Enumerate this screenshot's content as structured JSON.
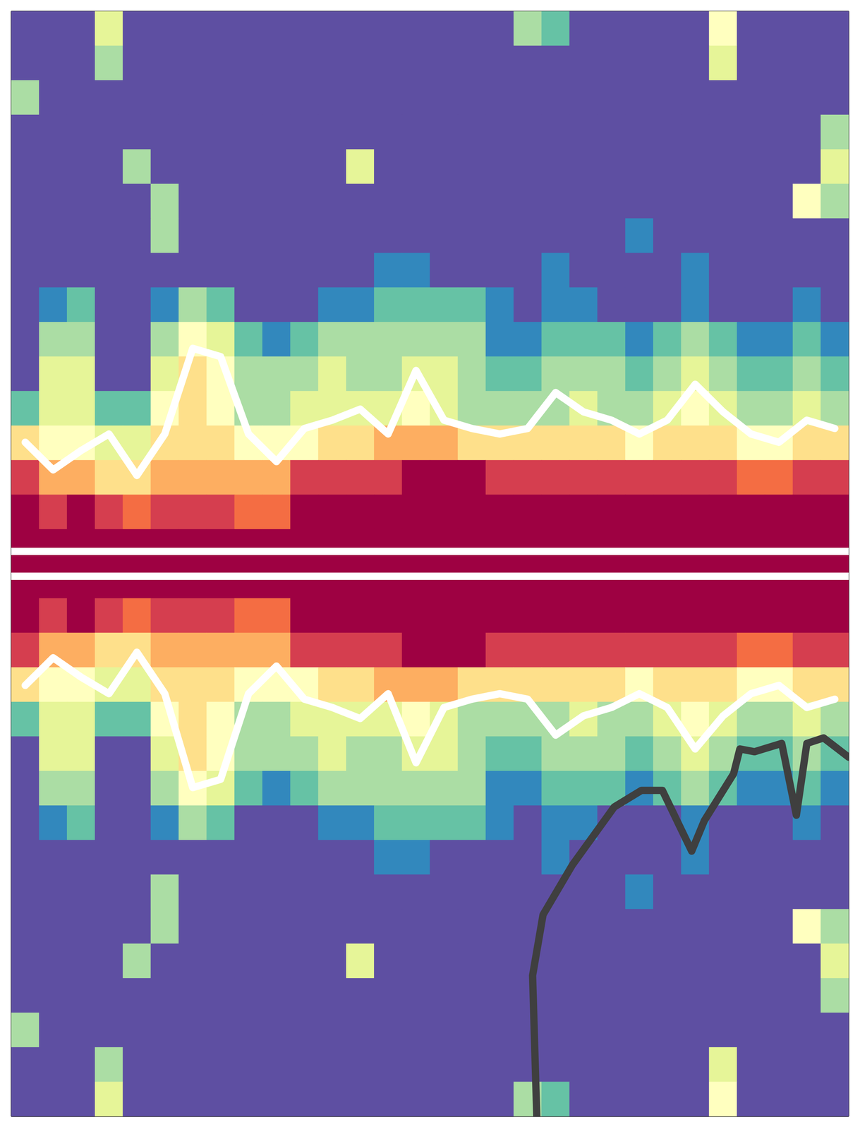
{
  "chart_data": {
    "type": "heatmap",
    "tick_labels": false,
    "xlim": [
      0,
      4
    ],
    "xticks": [
      1,
      2,
      3
    ],
    "ylim": [
      -2,
      2
    ],
    "yticks": [
      -1,
      1
    ],
    "zlim": [
      0,
      10
    ],
    "x": [
      0.0667,
      0.2,
      0.3333,
      0.4667,
      0.6,
      0.7333,
      0.8667,
      1,
      1.1333,
      1.2667,
      1.4,
      1.5333,
      1.6667,
      1.8,
      1.9333,
      2.0667,
      2.2,
      2.3333,
      2.4667,
      2.6,
      2.7333,
      2.8667,
      3,
      3.1333,
      3.2667,
      3.4,
      3.5333,
      3.6667,
      3.8,
      3.9333
    ],
    "y": [
      1.9375,
      1.8125,
      1.6875,
      1.5625,
      1.4375,
      1.3125,
      1.1875,
      1.0625,
      0.9375,
      0.8125,
      0.6875,
      0.5625,
      0.4375,
      0.3125,
      0.1875,
      0.0625,
      -0.0625,
      -0.1875,
      -0.3125,
      -0.4375,
      -0.5625,
      -0.6875,
      -0.8125,
      -0.9375,
      -1.0625,
      -1.1875,
      -1.3125,
      -1.4375,
      -1.5625,
      -1.6875,
      -1.8125,
      -1.9375
    ],
    "z": [
      [
        0,
        0,
        0,
        4,
        0,
        0,
        0,
        0,
        0,
        0,
        0,
        0,
        0,
        0,
        0,
        0,
        0,
        0,
        3,
        2,
        0,
        0,
        0,
        0,
        0,
        5,
        0,
        0,
        0,
        0
      ],
      [
        0,
        0,
        0,
        3,
        0,
        0,
        0,
        0,
        0,
        0,
        0,
        0,
        0,
        0,
        0,
        0,
        0,
        0,
        0,
        0,
        0,
        0,
        0,
        0,
        0,
        4,
        0,
        0,
        0,
        0
      ],
      [
        3,
        0,
        0,
        0,
        0,
        0,
        0,
        0,
        0,
        0,
        0,
        0,
        0,
        0,
        0,
        0,
        0,
        0,
        0,
        0,
        0,
        0,
        0,
        0,
        0,
        0,
        0,
        0,
        0,
        0
      ],
      [
        0,
        0,
        0,
        0,
        0,
        0,
        0,
        0,
        0,
        0,
        0,
        0,
        0,
        0,
        0,
        0,
        0,
        0,
        0,
        0,
        0,
        0,
        0,
        0,
        0,
        0,
        0,
        0,
        0,
        3
      ],
      [
        0,
        0,
        0,
        0,
        3,
        0,
        0,
        0,
        0,
        0,
        0,
        0,
        4,
        0,
        0,
        0,
        0,
        0,
        0,
        0,
        0,
        0,
        0,
        0,
        0,
        0,
        0,
        0,
        0,
        4
      ],
      [
        0,
        0,
        0,
        0,
        0,
        3,
        0,
        0,
        0,
        0,
        0,
        0,
        0,
        0,
        0,
        0,
        0,
        0,
        0,
        0,
        0,
        0,
        0,
        0,
        0,
        0,
        0,
        0,
        5,
        3
      ],
      [
        0,
        0,
        0,
        0,
        0,
        3,
        0,
        0,
        0,
        0,
        0,
        0,
        0,
        0,
        0,
        0,
        0,
        0,
        0,
        0,
        0,
        0,
        1,
        0,
        0,
        0,
        0,
        0,
        0,
        0
      ],
      [
        0,
        0,
        0,
        0,
        0,
        0,
        0,
        0,
        0,
        0,
        0,
        0,
        0,
        1,
        1,
        0,
        0,
        0,
        0,
        1,
        0,
        0,
        0,
        0,
        1,
        0,
        0,
        0,
        0,
        0
      ],
      [
        0,
        1,
        2,
        0,
        0,
        1,
        3,
        2,
        0,
        0,
        0,
        1,
        1,
        2,
        2,
        2,
        2,
        1,
        0,
        1,
        1,
        0,
        0,
        0,
        1,
        0,
        0,
        0,
        1,
        0
      ],
      [
        0,
        3,
        3,
        0,
        0,
        3,
        5,
        4,
        2,
        1,
        2,
        3,
        3,
        3,
        3,
        3,
        3,
        1,
        1,
        2,
        2,
        2,
        1,
        2,
        3,
        2,
        1,
        1,
        2,
        1
      ],
      [
        0,
        4,
        4,
        0,
        0,
        4,
        6,
        5,
        3,
        3,
        3,
        4,
        3,
        3,
        4,
        4,
        3,
        2,
        2,
        3,
        3,
        3,
        2,
        3,
        4,
        3,
        2,
        2,
        3,
        2
      ],
      [
        2,
        4,
        4,
        2,
        2,
        5,
        6,
        5,
        3,
        3,
        4,
        4,
        4,
        4,
        5,
        4,
        3,
        3,
        3,
        3,
        4,
        3,
        3,
        4,
        5,
        4,
        3,
        3,
        4,
        3
      ],
      [
        6,
        5,
        5,
        4,
        4,
        6,
        6,
        6,
        5,
        5,
        5,
        6,
        6,
        7,
        7,
        7,
        6,
        6,
        6,
        6,
        6,
        6,
        5,
        6,
        6,
        6,
        5,
        5,
        6,
        6
      ],
      [
        9,
        7,
        7,
        6,
        6,
        7,
        7,
        7,
        7,
        7,
        9,
        9,
        9,
        9,
        10,
        10,
        10,
        9,
        9,
        9,
        9,
        9,
        9,
        9,
        9,
        9,
        8,
        8,
        9,
        9
      ],
      [
        10,
        9,
        10,
        9,
        8,
        9,
        9,
        9,
        8,
        8,
        10,
        10,
        10,
        10,
        10,
        10,
        10,
        10,
        10,
        10,
        10,
        10,
        10,
        10,
        10,
        10,
        10,
        10,
        10,
        10
      ],
      [
        10,
        10,
        10,
        10,
        10,
        10,
        10,
        10,
        10,
        10,
        10,
        10,
        10,
        10,
        10,
        10,
        10,
        10,
        10,
        10,
        10,
        10,
        10,
        10,
        10,
        10,
        10,
        10,
        10,
        10
      ],
      [
        10,
        10,
        10,
        10,
        10,
        10,
        10,
        10,
        10,
        10,
        10,
        10,
        10,
        10,
        10,
        10,
        10,
        10,
        10,
        10,
        10,
        10,
        10,
        10,
        10,
        10,
        10,
        10,
        10,
        10
      ],
      [
        10,
        9,
        10,
        9,
        8,
        9,
        9,
        9,
        8,
        8,
        10,
        10,
        10,
        10,
        10,
        10,
        10,
        10,
        10,
        10,
        10,
        10,
        10,
        10,
        10,
        10,
        10,
        10,
        10,
        10
      ],
      [
        9,
        7,
        7,
        6,
        6,
        7,
        7,
        7,
        7,
        7,
        9,
        9,
        9,
        9,
        10,
        10,
        10,
        9,
        9,
        9,
        9,
        9,
        9,
        9,
        9,
        9,
        8,
        8,
        9,
        9
      ],
      [
        6,
        5,
        5,
        4,
        4,
        6,
        6,
        6,
        5,
        5,
        5,
        6,
        6,
        7,
        7,
        7,
        6,
        6,
        6,
        6,
        6,
        6,
        5,
        6,
        6,
        6,
        5,
        5,
        6,
        6
      ],
      [
        2,
        4,
        4,
        2,
        2,
        5,
        6,
        5,
        3,
        3,
        4,
        4,
        4,
        4,
        5,
        4,
        3,
        3,
        3,
        3,
        4,
        3,
        3,
        4,
        5,
        4,
        3,
        3,
        4,
        3
      ],
      [
        0,
        4,
        4,
        0,
        0,
        4,
        6,
        5,
        3,
        3,
        3,
        4,
        3,
        3,
        4,
        4,
        3,
        2,
        2,
        3,
        3,
        3,
        2,
        3,
        4,
        3,
        2,
        2,
        3,
        2
      ],
      [
        0,
        3,
        3,
        0,
        0,
        3,
        5,
        4,
        2,
        1,
        2,
        3,
        3,
        3,
        3,
        3,
        3,
        1,
        1,
        2,
        2,
        2,
        1,
        2,
        3,
        2,
        1,
        1,
        2,
        1
      ],
      [
        0,
        1,
        2,
        0,
        0,
        1,
        3,
        2,
        0,
        0,
        0,
        1,
        1,
        2,
        2,
        2,
        2,
        1,
        0,
        1,
        1,
        0,
        0,
        0,
        1,
        0,
        0,
        0,
        1,
        0
      ],
      [
        0,
        0,
        0,
        0,
        0,
        0,
        0,
        0,
        0,
        0,
        0,
        0,
        0,
        1,
        1,
        0,
        0,
        0,
        0,
        1,
        0,
        0,
        0,
        0,
        1,
        0,
        0,
        0,
        0,
        0
      ],
      [
        0,
        0,
        0,
        0,
        0,
        3,
        0,
        0,
        0,
        0,
        0,
        0,
        0,
        0,
        0,
        0,
        0,
        0,
        0,
        0,
        0,
        0,
        1,
        0,
        0,
        0,
        0,
        0,
        0,
        0
      ],
      [
        0,
        0,
        0,
        0,
        0,
        3,
        0,
        0,
        0,
        0,
        0,
        0,
        0,
        0,
        0,
        0,
        0,
        0,
        0,
        0,
        0,
        0,
        0,
        0,
        0,
        0,
        0,
        0,
        5,
        3
      ],
      [
        0,
        0,
        0,
        0,
        3,
        0,
        0,
        0,
        0,
        0,
        0,
        0,
        4,
        0,
        0,
        0,
        0,
        0,
        0,
        0,
        0,
        0,
        0,
        0,
        0,
        0,
        0,
        0,
        0,
        4
      ],
      [
        0,
        0,
        0,
        0,
        0,
        0,
        0,
        0,
        0,
        0,
        0,
        0,
        0,
        0,
        0,
        0,
        0,
        0,
        0,
        0,
        0,
        0,
        0,
        0,
        0,
        0,
        0,
        0,
        0,
        3
      ],
      [
        3,
        0,
        0,
        0,
        0,
        0,
        0,
        0,
        0,
        0,
        0,
        0,
        0,
        0,
        0,
        0,
        0,
        0,
        0,
        0,
        0,
        0,
        0,
        0,
        0,
        0,
        0,
        0,
        0,
        0
      ],
      [
        0,
        0,
        0,
        3,
        0,
        0,
        0,
        0,
        0,
        0,
        0,
        0,
        0,
        0,
        0,
        0,
        0,
        0,
        0,
        0,
        0,
        0,
        0,
        0,
        0,
        4,
        0,
        0,
        0,
        0
      ],
      [
        0,
        0,
        0,
        4,
        0,
        0,
        0,
        0,
        0,
        0,
        0,
        0,
        0,
        0,
        0,
        0,
        0,
        0,
        3,
        2,
        0,
        0,
        0,
        0,
        0,
        5,
        0,
        0,
        0,
        0
      ]
    ],
    "series": [
      {
        "color": "#ffffff",
        "x": [
          0.0667,
          0.2,
          0.3333,
          0.4667,
          0.6,
          0.7333,
          0.8667,
          1,
          1.1333,
          1.2667,
          1.4,
          1.5333,
          1.6667,
          1.8,
          1.9333,
          2.0667,
          2.2,
          2.3333,
          2.4667,
          2.6,
          2.7333,
          2.8667,
          3,
          3.1333,
          3.2667,
          3.4,
          3.5333,
          3.6667,
          3.8,
          3.9333
        ],
        "values": [
          0.44,
          0.34,
          0.41,
          0.47,
          0.32,
          0.47,
          0.78,
          0.75,
          0.47,
          0.37,
          0.49,
          0.52,
          0.56,
          0.47,
          0.7,
          0.52,
          0.49,
          0.47,
          0.49,
          0.62,
          0.55,
          0.52,
          0.47,
          0.52,
          0.65,
          0.55,
          0.47,
          0.44,
          0.52,
          0.49
        ]
      },
      {
        "color": "#ffffff",
        "x": [
          0.0667,
          0.2,
          0.3333,
          0.4667,
          0.6,
          0.7333,
          0.8667,
          1,
          1.1333,
          1.2667,
          1.4,
          1.5333,
          1.6667,
          1.8,
          1.9333,
          2.0667,
          2.2,
          2.3333,
          2.4667,
          2.6,
          2.7333,
          2.8667,
          3,
          3.1333,
          3.2667,
          3.4,
          3.5333,
          3.6667,
          3.8,
          3.9333
        ],
        "values": [
          -0.44,
          -0.34,
          -0.41,
          -0.47,
          -0.32,
          -0.47,
          -0.81,
          -0.78,
          -0.47,
          -0.37,
          -0.49,
          -0.52,
          -0.56,
          -0.47,
          -0.72,
          -0.52,
          -0.49,
          -0.47,
          -0.49,
          -0.62,
          -0.55,
          -0.52,
          -0.47,
          -0.52,
          -0.67,
          -0.55,
          -0.47,
          -0.44,
          -0.52,
          -0.49
        ]
      },
      {
        "color": "#ffffff",
        "x": [
          0,
          4
        ],
        "values": [
          0.045,
          0.045
        ]
      },
      {
        "color": "#ffffff",
        "x": [
          0,
          4
        ],
        "values": [
          -0.045,
          -0.045
        ]
      },
      {
        "color": "#3f3f3f",
        "x": [
          2.51,
          2.49,
          2.54,
          2.68,
          2.88,
          3.01,
          3.11,
          3.25,
          3.31,
          3.45,
          3.48,
          3.55,
          3.68,
          3.75,
          3.8,
          3.88,
          4.0
        ],
        "values": [
          -2.0,
          -1.49,
          -1.27,
          -1.09,
          -0.88,
          -0.82,
          -0.82,
          -1.04,
          -0.93,
          -0.76,
          -0.67,
          -0.68,
          -0.65,
          -0.91,
          -0.65,
          -0.63,
          -0.7
        ]
      }
    ]
  }
}
